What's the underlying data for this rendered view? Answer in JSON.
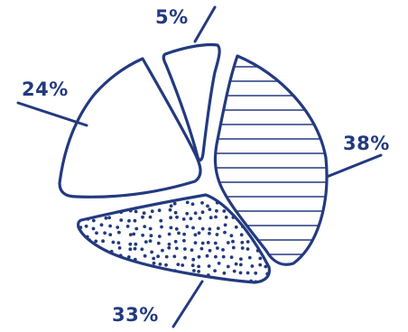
{
  "chart_data": {
    "type": "pie",
    "style": "hand-drawn exploded pie, outline only, hatched / dotted fills",
    "title": "",
    "slices": [
      {
        "label": "5%",
        "value": 5,
        "fill": "none"
      },
      {
        "label": "38%",
        "value": 38,
        "fill": "horizontal-hatch"
      },
      {
        "label": "33%",
        "value": 33,
        "fill": "dots"
      },
      {
        "label": "24%",
        "value": 24,
        "fill": "none"
      }
    ],
    "legend": "none",
    "colors": {
      "ink": "#233a80",
      "background": "#ffffff"
    }
  }
}
